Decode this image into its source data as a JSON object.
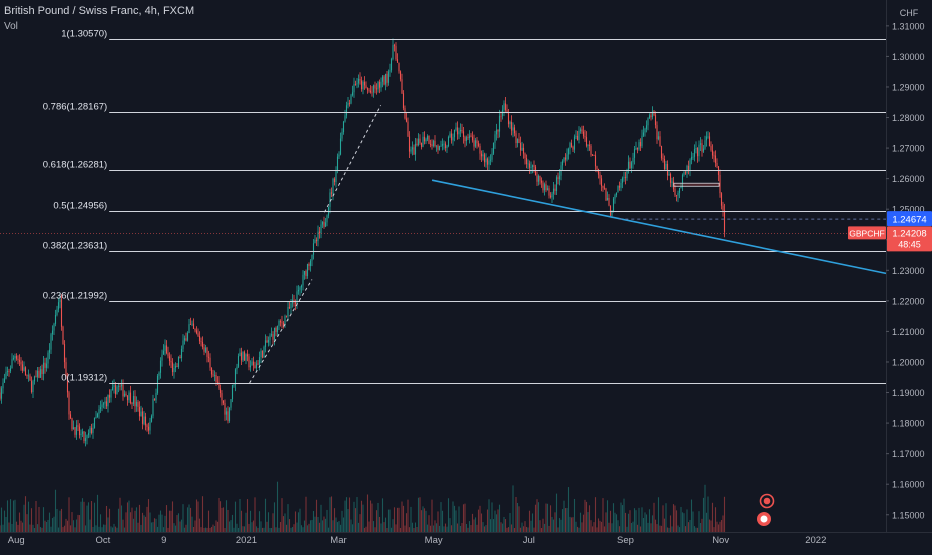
{
  "chart_title": "British Pound / Swiss Franc, 4h, FXCM",
  "volume_label": "Vol",
  "colors": {
    "background": "#131722",
    "bull": "#26a69a",
    "bear": "#ef5350",
    "fib_line": "#d1d4dc",
    "trendline": "#2fa0dc",
    "price_tag_symbol": "#ef5350",
    "price_tag_level": "#2962ff"
  },
  "chart_data": {
    "type": "candlestick",
    "title": "British Pound / Swiss Franc, 4h, FXCM",
    "symbol": "GBPCHF",
    "timeframe": "4h",
    "currency_label": "CHF",
    "ylim": [
      1.146,
      1.313
    ],
    "y_ticks": [
      "1.31000",
      "1.30000",
      "1.29000",
      "1.28000",
      "1.27000",
      "1.26000",
      "1.25000",
      "1.24000",
      "1.23000",
      "1.22000",
      "1.21000",
      "1.20000",
      "1.19000",
      "1.18000",
      "1.17000",
      "1.16000",
      "1.15000"
    ],
    "x_ticks": [
      "Aug",
      "Oct",
      "9",
      "2021",
      "Mar",
      "May",
      "Jul",
      "Sep",
      "Nov",
      "2022"
    ],
    "x_tick_dates": [
      "2020-08",
      "2020-10",
      "2020-11-09",
      "2021-01",
      "2021-03",
      "2021-05",
      "2021-07",
      "2021-09",
      "2021-11",
      "2022-01"
    ],
    "price_path": [
      [
        "2020-07-27",
        1.19
      ],
      [
        "2020-08-06",
        1.203
      ],
      [
        "2020-08-16",
        1.192
      ],
      [
        "2020-08-26",
        1.2
      ],
      [
        "2020-09-03",
        1.222
      ],
      [
        "2020-09-10",
        1.18
      ],
      [
        "2020-09-20",
        1.174
      ],
      [
        "2020-09-30",
        1.185
      ],
      [
        "2020-10-10",
        1.192
      ],
      [
        "2020-10-20",
        1.188
      ],
      [
        "2020-10-30",
        1.178
      ],
      [
        "2020-11-09",
        1.205
      ],
      [
        "2020-11-16",
        1.196
      ],
      [
        "2020-11-25",
        1.212
      ],
      [
        "2020-12-04",
        1.206
      ],
      [
        "2020-12-12",
        1.194
      ],
      [
        "2020-12-20",
        1.182
      ],
      [
        "2020-12-27",
        1.203
      ],
      [
        "2021-01-06",
        1.198
      ],
      [
        "2021-01-15",
        1.207
      ],
      [
        "2021-01-25",
        1.214
      ],
      [
        "2021-02-03",
        1.222
      ],
      [
        "2021-02-12",
        1.236
      ],
      [
        "2021-02-20",
        1.246
      ],
      [
        "2021-02-27",
        1.262
      ],
      [
        "2021-03-05",
        1.282
      ],
      [
        "2021-03-12",
        1.292
      ],
      [
        "2021-03-22",
        1.288
      ],
      [
        "2021-04-01",
        1.293
      ],
      [
        "2021-04-06",
        1.304
      ],
      [
        "2021-04-10",
        1.29
      ],
      [
        "2021-04-16",
        1.268
      ],
      [
        "2021-04-26",
        1.274
      ],
      [
        "2021-05-06",
        1.269
      ],
      [
        "2021-05-16",
        1.276
      ],
      [
        "2021-05-26",
        1.272
      ],
      [
        "2021-06-05",
        1.265
      ],
      [
        "2021-06-15",
        1.284
      ],
      [
        "2021-06-25",
        1.27
      ],
      [
        "2021-07-05",
        1.262
      ],
      [
        "2021-07-15",
        1.254
      ],
      [
        "2021-07-25",
        1.268
      ],
      [
        "2021-08-04",
        1.276
      ],
      [
        "2021-08-14",
        1.264
      ],
      [
        "2021-08-22",
        1.249
      ],
      [
        "2021-09-01",
        1.262
      ],
      [
        "2021-09-11",
        1.272
      ],
      [
        "2021-09-18",
        1.282
      ],
      [
        "2021-09-26",
        1.264
      ],
      [
        "2021-10-04",
        1.255
      ],
      [
        "2021-10-14",
        1.267
      ],
      [
        "2021-10-24",
        1.273
      ],
      [
        "2021-10-30",
        1.262
      ],
      [
        "2021-11-04",
        1.242
      ]
    ],
    "fibonacci_levels": [
      {
        "label": "1(1.30570)",
        "value": 1.3057
      },
      {
        "label": "0.786(1.28167)",
        "value": 1.28167
      },
      {
        "label": "0.618(1.26281)",
        "value": 1.26281
      },
      {
        "label": "0.5(1.24956)",
        "value": 1.24956
      },
      {
        "label": "0.382(1.23631)",
        "value": 1.23631
      },
      {
        "label": "0.236(1.21992)",
        "value": 1.21992
      },
      {
        "label": "0(1.19312)",
        "value": 1.19312
      }
    ],
    "fib_start_date": "2020-10-05",
    "fib_end_date": "2022-02-15",
    "trendline": {
      "x1": "2021-04-30",
      "y1": 1.2595,
      "x2": "2022-02-15",
      "y2": 1.229
    },
    "dashed_swing_lines": [
      {
        "x1": "2021-01-03",
        "y1": 1.1931,
        "x2": "2021-02-12",
        "y2": 1.227
      },
      {
        "x1": "2021-02-20",
        "y1": 1.249,
        "x2": "2021-03-28",
        "y2": 1.284
      }
    ],
    "resistance_box": {
      "x1": "2021-10-02",
      "x2": "2021-10-31",
      "y1": 1.2585,
      "y2": 1.2575
    },
    "reference_level": {
      "value": 1.24674,
      "label": "1.24674"
    },
    "last_price": {
      "value": 1.24208,
      "label": "1.24208",
      "symbol": "GBPCHF",
      "countdown": "48:45"
    }
  }
}
